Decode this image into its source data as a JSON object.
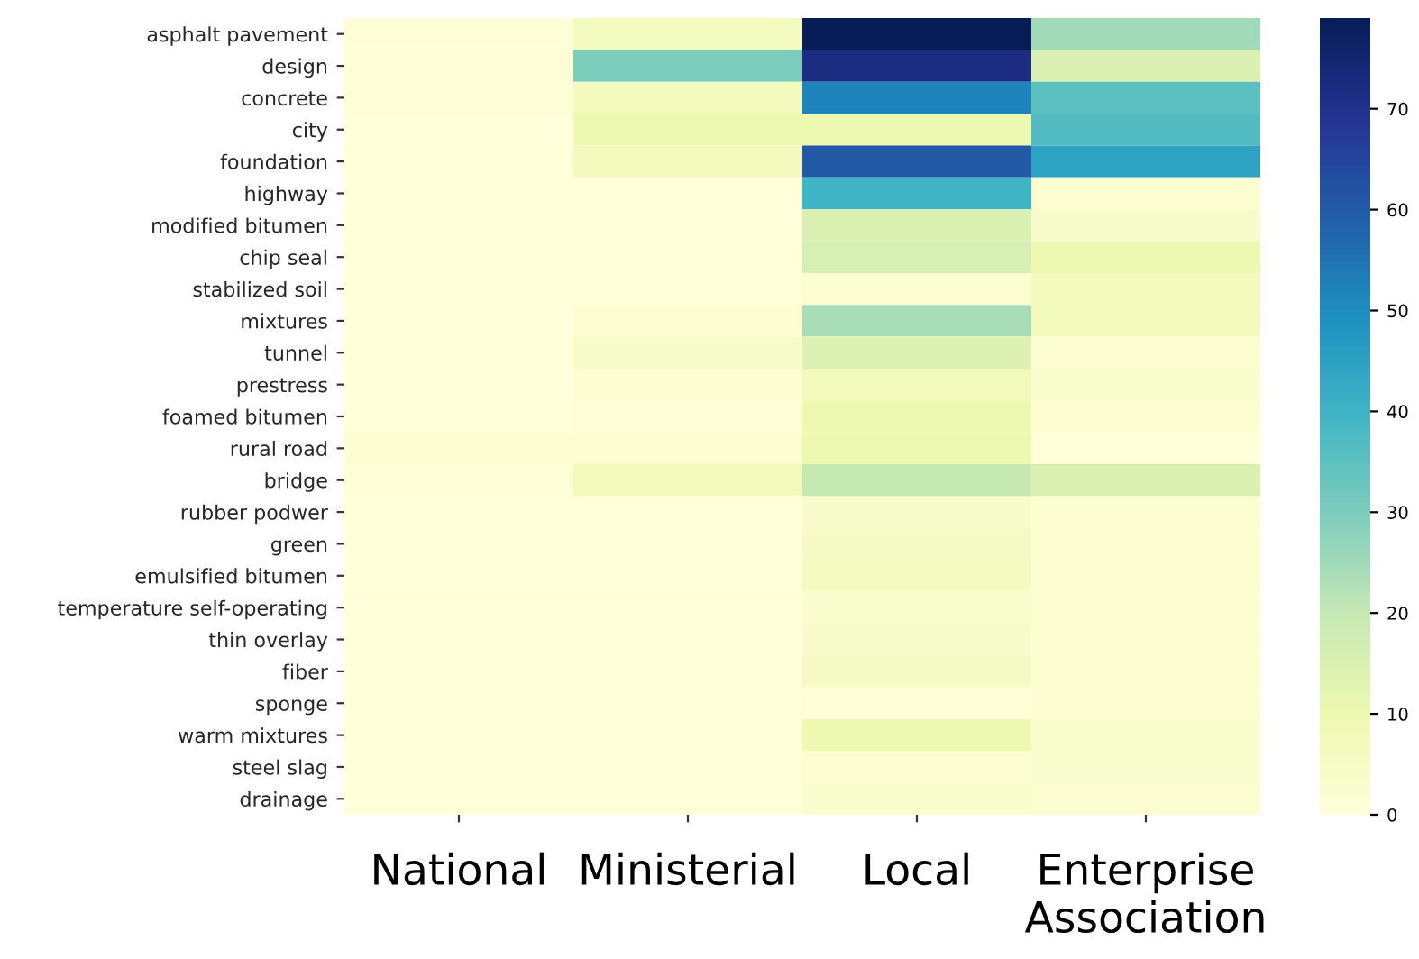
{
  "chart_data": {
    "type": "heatmap",
    "categories": [
      "National",
      "Ministerial",
      "Local",
      "Enterprise\nAssociation"
    ],
    "y_categories": [
      "asphalt pavement",
      "design",
      "concrete",
      "city",
      "foundation",
      "highway",
      "modified bitumen",
      "chip seal",
      "stabilized soil",
      "mixtures",
      "tunnel",
      "prestress",
      "foamed bitumen",
      "rural road",
      "bridge",
      "rubber podwer",
      "green",
      "emulsified bitumen",
      "temperature self-operating",
      "thin overlay",
      "fiber",
      "sponge",
      "warm mixtures",
      "steel slag",
      "drainage"
    ],
    "cells": [
      [
        1,
        6,
        79,
        25
      ],
      [
        1,
        30,
        72,
        15
      ],
      [
        1,
        7,
        52,
        35
      ],
      [
        0,
        10,
        10,
        37
      ],
      [
        0,
        7,
        60,
        45
      ],
      [
        0,
        0,
        40,
        2
      ],
      [
        0,
        0,
        15,
        4
      ],
      [
        0,
        0,
        16,
        10
      ],
      [
        0,
        0,
        2,
        7
      ],
      [
        0,
        2,
        24,
        7
      ],
      [
        0,
        4,
        14,
        2
      ],
      [
        0,
        2,
        8,
        3
      ],
      [
        0,
        1,
        10,
        2
      ],
      [
        2,
        2,
        10,
        0
      ],
      [
        1,
        8,
        20,
        15
      ],
      [
        0,
        0,
        4,
        2
      ],
      [
        0,
        0,
        5,
        2
      ],
      [
        0,
        0,
        6,
        2
      ],
      [
        0,
        0,
        3,
        2
      ],
      [
        0,
        0,
        4,
        2
      ],
      [
        0,
        0,
        5,
        2
      ],
      [
        0,
        0,
        1,
        2
      ],
      [
        0,
        0,
        10,
        3
      ],
      [
        0,
        0,
        2,
        3
      ],
      [
        0,
        0,
        3,
        2
      ]
    ],
    "clim": [
      0,
      79
    ],
    "cticks": [
      0,
      10,
      20,
      30,
      40,
      50,
      60,
      70
    ]
  }
}
